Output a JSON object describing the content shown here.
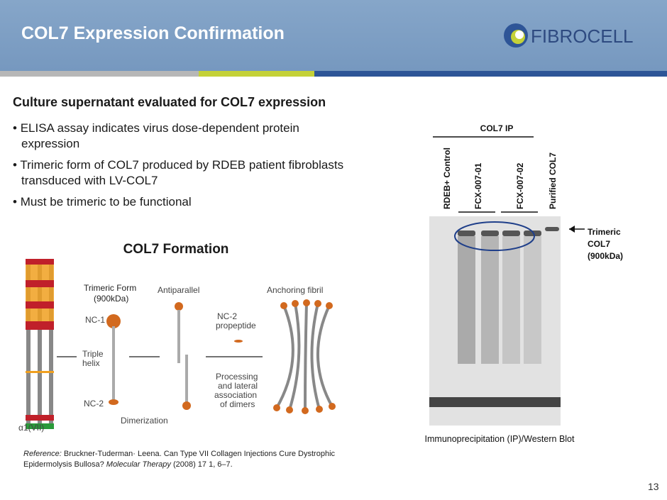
{
  "header": {
    "title": "COL7 Expression Confirmation",
    "logo": "FIBROCELL"
  },
  "body": {
    "heading": "Culture supernatant evaluated for COL7 expression",
    "bullets": [
      "ELISA assay indicates virus dose-dependent protein expression",
      "Trimeric form of COL7 produced by RDEB patient fibroblasts transduced with LV-COL7",
      "Must be trimeric to be functional"
    ]
  },
  "figure": {
    "title": "COL7 Formation",
    "labels": {
      "trimeric_form": "Trimeric Form",
      "trimeric_size": "(900kDa)",
      "antiparallel": "Antiparallel",
      "anchoring_fibril": "Anchoring fibril",
      "nc1": "NC-1",
      "triple_helix": [
        "Triple",
        "helix"
      ],
      "nc2": "NC-2",
      "propeptide": [
        "NC-2",
        "propeptide"
      ],
      "processing": [
        "Processing",
        "and lateral",
        "association",
        "of dimers"
      ],
      "dimerization": "Dimerization",
      "alpha": "α1(VII)"
    }
  },
  "reference": {
    "label": "Reference:",
    "authors": "Bruckner-Tuderman· Leena. Can Type VII Collagen Injections Cure Dystrophic Epidermolysis Bullosa?",
    "journal": "Molecular Therapy",
    "citation": "(2008) 17 1, 6–7."
  },
  "blot": {
    "group": "COL7 IP",
    "lanes": [
      "RDEB+ Control",
      "FCX-007-01",
      "FCX-007-02",
      "Purified COL7"
    ],
    "band_label": [
      "Trimeric",
      "COL7",
      "(900kDa)"
    ],
    "caption": "Immunoprecipitation (IP)/Western Blot"
  },
  "page_number": "13"
}
